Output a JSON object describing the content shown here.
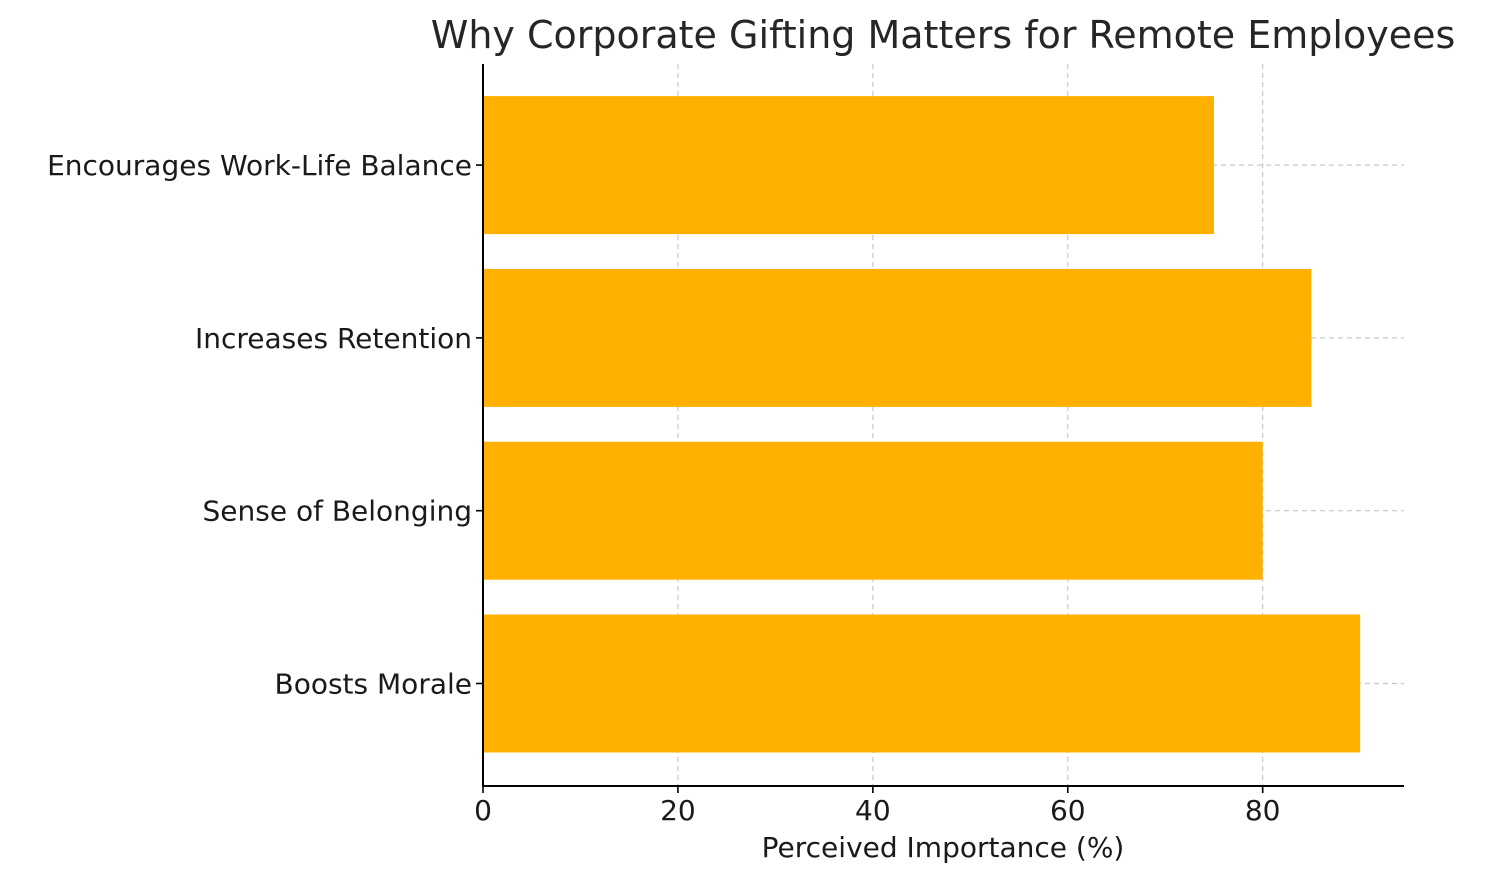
{
  "chart_data": {
    "type": "bar",
    "orientation": "horizontal",
    "title": "Why Corporate Gifting Matters for Remote Employees",
    "xlabel": "Perceived Importance (%)",
    "ylabel": "",
    "categories": [
      "Boosts Morale",
      "Sense of Belonging",
      "Increases Retention",
      "Encourages Work-Life Balance"
    ],
    "values": [
      90,
      80,
      85,
      75
    ],
    "xlim": [
      0,
      94.5
    ],
    "xticks": [
      0,
      20,
      40,
      60,
      80
    ],
    "xtick_labels": [
      "0",
      "20",
      "40",
      "60",
      "80"
    ],
    "grid": true,
    "bar_color": "#FFB000"
  }
}
